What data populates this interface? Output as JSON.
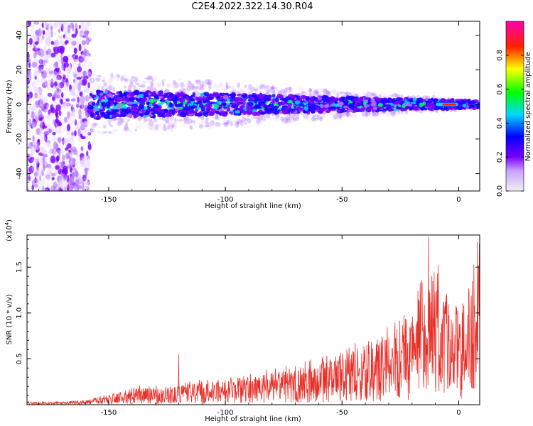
{
  "title": "C2E4.2022.322.14.30.R04",
  "chart_data": [
    {
      "type": "heatmap",
      "title": "C2E4.2022.322.14.30.R04",
      "xlabel": "Height of straight line (km)",
      "ylabel": "Frequency (Hz)",
      "xlim": [
        -185,
        9
      ],
      "ylim": [
        -50,
        48
      ],
      "x_ticks": [
        -150,
        -100,
        -50,
        0
      ],
      "x_tick_labels": [
        "-150",
        "-100",
        "-50",
        "0"
      ],
      "y_ticks": [
        40,
        20,
        0,
        -20,
        -40
      ],
      "y_tick_labels": [
        "40",
        "20",
        "0",
        "-20",
        "-40"
      ],
      "colorbar": {
        "label": "Normalized spectral amplitude",
        "range": [
          0,
          1
        ],
        "ticks": [
          0.0,
          0.2,
          0.4,
          0.6,
          0.8
        ],
        "tick_labels": [
          "0.0",
          "0.2",
          "0.4",
          "0.6",
          "0.8"
        ],
        "colormap": [
          "#f0f0f0",
          "#7a00ff",
          "#0000ff",
          "#00e0ff",
          "#00ff00",
          "#ffff00",
          "#ff0000",
          "#ff00c0"
        ]
      },
      "description_values": {
        "noise_region_x": [
          -185,
          -158
        ],
        "main_band_x": [
          -158,
          9
        ],
        "band_center_hz": 0,
        "band_halfwidth_hz_start": 8,
        "band_halfwidth_hz_end": 2,
        "peak_x": [
          -10,
          0
        ],
        "peak_amplitude": 0.9
      }
    },
    {
      "type": "line",
      "xlabel": "Height of straight line (km)",
      "ylabel": "SNR (10 * v/v)",
      "y_multiplier_label": "(x10",
      "y_multiplier_exp": "4",
      "y_multiplier_close": ")",
      "xlim": [
        -185,
        9
      ],
      "ylim": [
        0,
        18500
      ],
      "x_ticks": [
        -150,
        -100,
        -50,
        0
      ],
      "x_tick_labels": [
        "-150",
        "-100",
        "-50",
        "0"
      ],
      "y_ticks": [
        5000,
        10000,
        15000
      ],
      "y_tick_labels": [
        "0.5",
        "1.0",
        "1.5"
      ],
      "series_color": "#e8302a",
      "envelope": {
        "x": [
          -185,
          -170,
          -160,
          -150,
          -140,
          -130,
          -120,
          -110,
          -100,
          -90,
          -80,
          -70,
          -60,
          -50,
          -40,
          -30,
          -20,
          -15,
          -10,
          -5,
          0,
          5,
          9
        ],
        "y": [
          300,
          300,
          500,
          1000,
          1800,
          1800,
          2000,
          2500,
          2500,
          3000,
          3500,
          4000,
          4500,
          5500,
          6500,
          8000,
          10000,
          13000,
          15000,
          11000,
          10500,
          12000,
          18000
        ]
      },
      "notable_peaks": [
        {
          "x": -120,
          "y": 5500
        },
        {
          "x": -13,
          "y": 18300
        },
        {
          "x": 8,
          "y": 17800
        }
      ]
    }
  ]
}
